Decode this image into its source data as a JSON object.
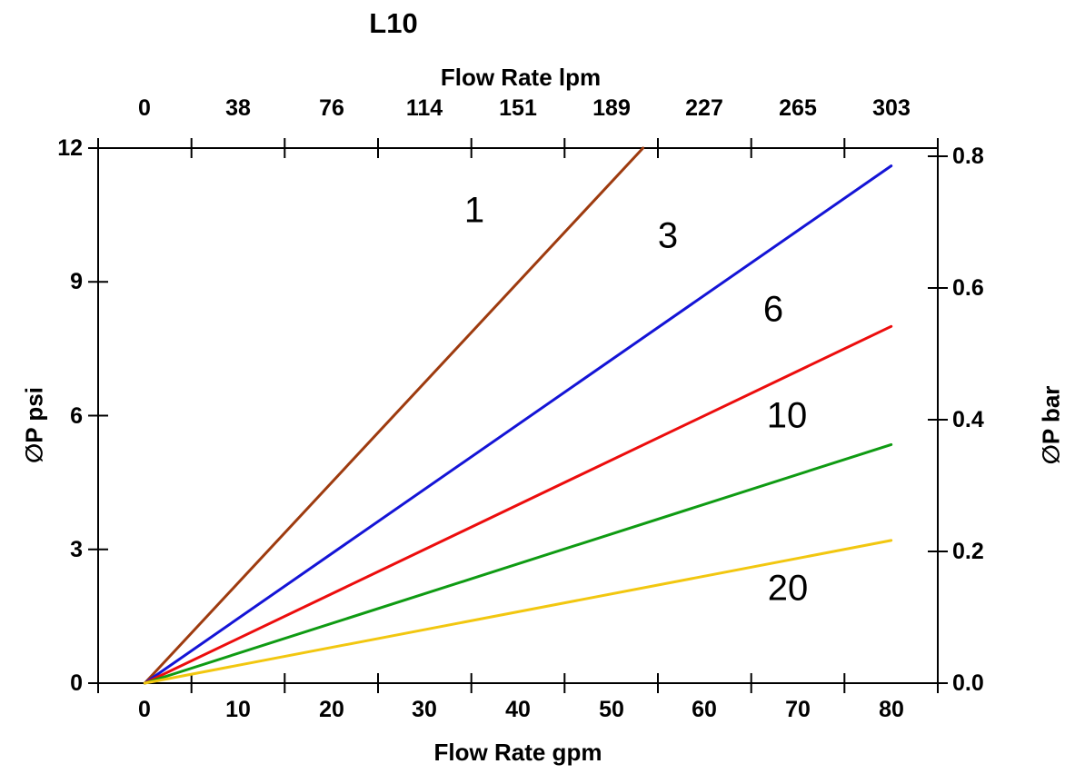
{
  "chart_data": {
    "type": "line",
    "title": "L10",
    "top_axis": {
      "label": "Flow Rate lpm",
      "tick_labels": [
        "0",
        "38",
        "76",
        "114",
        "151",
        "189",
        "227",
        "265",
        "303"
      ],
      "tick_values_gpm": [
        0,
        10,
        20,
        30,
        40,
        50,
        60,
        70,
        80
      ]
    },
    "bottom_axis": {
      "label": "Flow Rate gpm",
      "tick_labels": [
        "0",
        "10",
        "20",
        "30",
        "40",
        "50",
        "60",
        "70",
        "80"
      ],
      "tick_values_gpm": [
        0,
        10,
        20,
        30,
        40,
        50,
        60,
        70,
        80
      ],
      "range_gpm": [
        -5,
        85
      ],
      "tick_marks_gpm": [
        -5,
        5,
        15,
        25,
        35,
        45,
        55,
        65,
        75,
        85
      ]
    },
    "left_axis": {
      "label": "∅P psi",
      "tick_labels": [
        "0",
        "3",
        "6",
        "9",
        "12"
      ],
      "tick_values_psi": [
        0,
        3,
        6,
        9,
        12
      ],
      "range_psi": [
        0,
        12
      ]
    },
    "right_axis": {
      "label": "∅P bar",
      "tick_labels": [
        "0.0",
        "0.2",
        "0.4",
        "0.6",
        "0.8"
      ],
      "tick_values_bar": [
        0.0,
        0.2,
        0.4,
        0.6,
        0.8
      ]
    },
    "grid": false,
    "frame": true,
    "axis_color": "#000000",
    "series": [
      {
        "name": "1",
        "color": "#9E3B0F",
        "points_gpm_psi": [
          [
            0,
            0
          ],
          [
            53.4,
            12
          ]
        ],
        "label_at_gpm_psi": [
          35.3,
          10.6
        ]
      },
      {
        "name": "3",
        "color": "#1414D6",
        "points_gpm_psi": [
          [
            0,
            0
          ],
          [
            80,
            11.6
          ]
        ],
        "label_at_gpm_psi": [
          56.1,
          10.03
        ]
      },
      {
        "name": "6",
        "color": "#EC0D0D",
        "points_gpm_psi": [
          [
            0,
            0
          ],
          [
            80,
            8.0
          ]
        ],
        "label_at_gpm_psi": [
          67.4,
          8.37
        ]
      },
      {
        "name": "10",
        "color": "#0F9B13",
        "points_gpm_psi": [
          [
            0,
            0
          ],
          [
            80,
            5.35
          ]
        ],
        "label_at_gpm_psi": [
          68.8,
          5.99
        ]
      },
      {
        "name": "20",
        "color": "#F2C710",
        "points_gpm_psi": [
          [
            0,
            0
          ],
          [
            80,
            3.2
          ]
        ],
        "label_at_gpm_psi": [
          68.9,
          2.12
        ]
      }
    ]
  }
}
